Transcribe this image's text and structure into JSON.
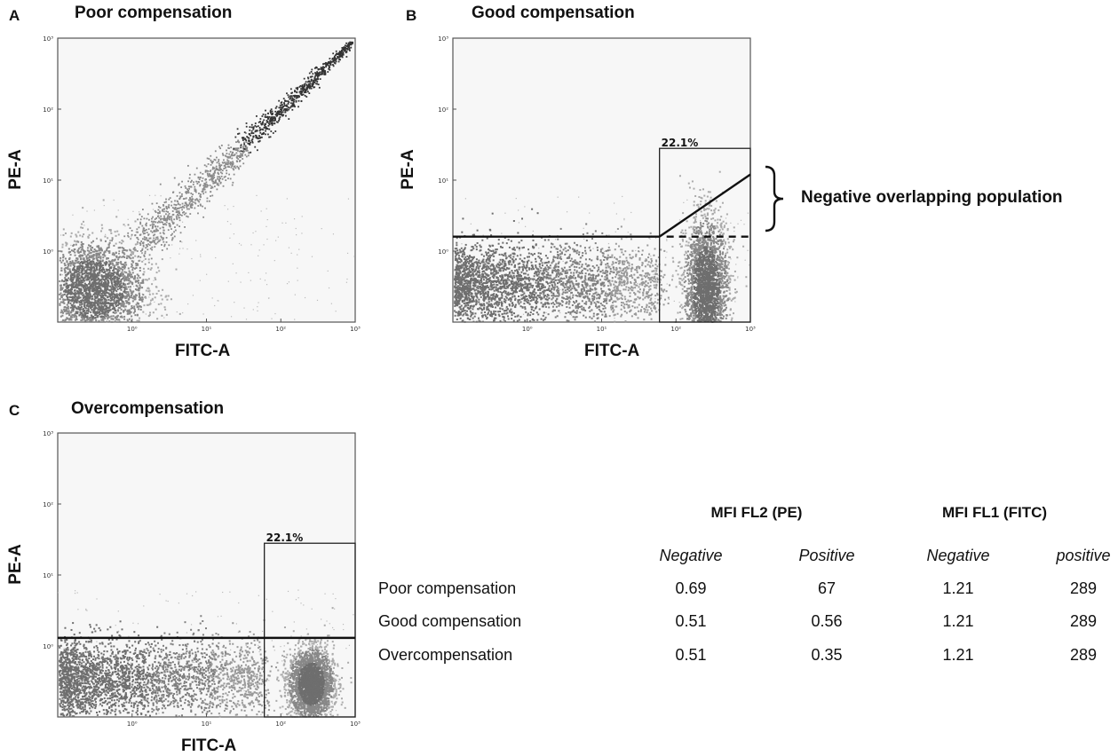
{
  "panels": [
    {
      "letter": "A",
      "title": "Poor compensation",
      "xlabel": "FITC-A",
      "ylabel": "PE-A",
      "gate_label": ""
    },
    {
      "letter": "B",
      "title": "Good compensation",
      "xlabel": "FITC-A",
      "ylabel": "PE-A",
      "gate_label": "22.1%"
    },
    {
      "letter": "C",
      "title": "Overcompensation",
      "xlabel": "FITC-A",
      "ylabel": "PE-A",
      "gate_label": "22.1%"
    }
  ],
  "annotation": "Negative overlapping population",
  "chart_data": [
    {
      "type": "scatter",
      "title": "Poor compensation",
      "xlabel": "FITC-A",
      "ylabel": "PE-A",
      "xscale": "log",
      "yscale": "log",
      "xlim": [
        0.1,
        1000
      ],
      "ylim": [
        0.1,
        1000
      ],
      "x_tick_labels": [
        "10⁰",
        "10¹",
        "10²",
        "10³"
      ],
      "y_tick_labels": [
        "10⁰",
        "10¹",
        "10²",
        "10³"
      ],
      "populations": [
        {
          "kind": "cluster",
          "center": [
            0.3,
            0.3
          ],
          "spread_decades": [
            0.35,
            0.35
          ]
        },
        {
          "kind": "diagonal",
          "from": [
            1,
            1
          ],
          "to": [
            900,
            900
          ]
        }
      ]
    },
    {
      "type": "scatter",
      "title": "Good compensation",
      "xlabel": "FITC-A",
      "ylabel": "PE-A",
      "xscale": "log",
      "yscale": "log",
      "xlim": [
        0.1,
        1000
      ],
      "ylim": [
        0.1,
        1000
      ],
      "x_tick_labels": [
        "10⁰",
        "10¹",
        "10²",
        "10³"
      ],
      "y_tick_labels": [
        "10⁰",
        "10¹",
        "10²",
        "10³"
      ],
      "gate": {
        "label": "22.1%",
        "x_threshold": 60,
        "y_threshold": 28
      },
      "populations": [
        {
          "kind": "band",
          "x_range": [
            0.1,
            60
          ],
          "y_center": 0.35
        },
        {
          "kind": "cluster",
          "center": [
            250,
            0.3
          ],
          "spread_decades": [
            0.15,
            0.5
          ]
        }
      ]
    },
    {
      "type": "scatter",
      "title": "Overcompensation",
      "xlabel": "FITC-A",
      "ylabel": "PE-A",
      "xscale": "log",
      "yscale": "log",
      "xlim": [
        0.1,
        1000
      ],
      "ylim": [
        0.1,
        1000
      ],
      "x_tick_labels": [
        "10⁰",
        "10¹",
        "10²",
        "10³"
      ],
      "y_tick_labels": [
        "10⁰",
        "10¹",
        "10²",
        "10³"
      ],
      "gate": {
        "label": "22.1%",
        "x_threshold": 60,
        "y_threshold": 28
      },
      "populations": [
        {
          "kind": "band",
          "x_range": [
            0.1,
            60
          ],
          "y_center": 0.35
        },
        {
          "kind": "cluster",
          "center": [
            250,
            0.3
          ],
          "spread_decades": [
            0.15,
            0.25
          ]
        }
      ]
    },
    {
      "type": "table",
      "group_headers": [
        "MFI FL2 (PE)",
        "MFI FL1 (FITC)"
      ],
      "sub_headers": [
        "Negative",
        "Positive",
        "Negative",
        "positive"
      ],
      "rows": [
        {
          "label": "Poor compensation",
          "values": [
            "0.69",
            "67",
            "1.21",
            "289"
          ]
        },
        {
          "label": "Good compensation",
          "values": [
            "0.51",
            "0.56",
            "1.21",
            "289"
          ]
        },
        {
          "label": "Overcompensation",
          "values": [
            "0.51",
            "0.35",
            "1.21",
            "289"
          ]
        }
      ]
    }
  ]
}
